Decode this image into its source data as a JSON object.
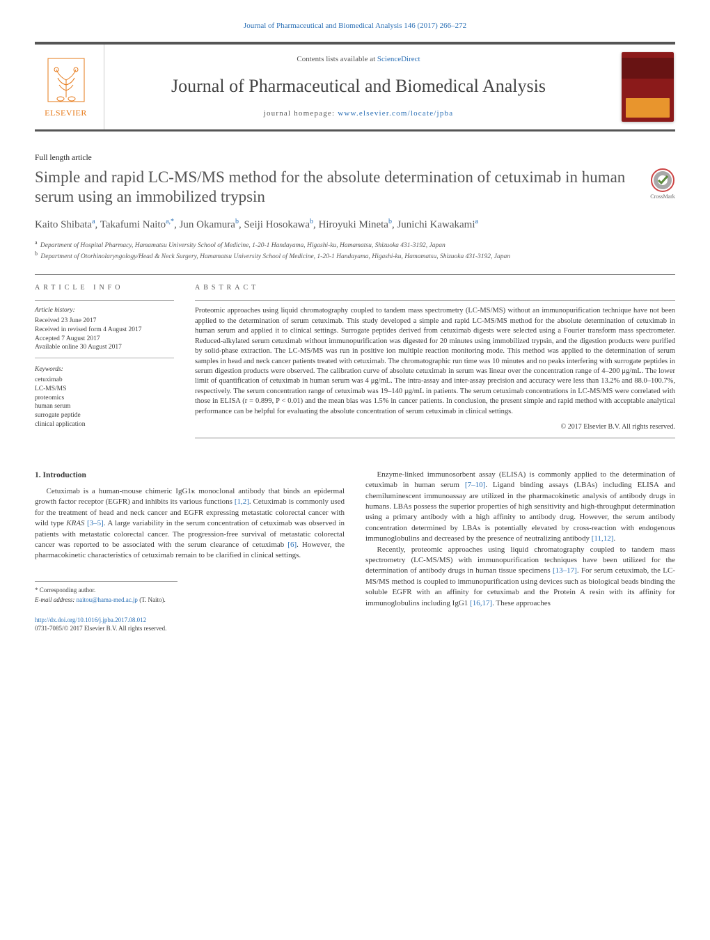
{
  "header": {
    "top_citation": "Journal of Pharmaceutical and Biomedical Analysis 146 (2017) 266–272",
    "contents_prefix": "Contents lists available at ",
    "contents_link": "ScienceDirect",
    "journal_name": "Journal of Pharmaceutical and Biomedical Analysis",
    "homepage_prefix": "journal homepage: ",
    "homepage_url": "www.elsevier.com/locate/jpba",
    "publisher_name": "ELSEVIER",
    "crossmark_label": "CrossMark"
  },
  "article": {
    "type": "Full length article",
    "title": "Simple and rapid LC-MS/MS method for the absolute determination of cetuximab in human serum using an immobilized trypsin",
    "authors_html": "Kaito Shibata<sup>a</sup>, Takafumi Naito<sup>a,*</sup>, Jun Okamura<sup>b</sup>, Seiji Hosokawa<sup>b</sup>, Hiroyuki Mineta<sup>b</sup>, Junichi Kawakami<sup>a</sup>",
    "authors": [
      {
        "name": "Kaito Shibata",
        "aff": "a"
      },
      {
        "name": "Takafumi Naito",
        "aff": "a,*"
      },
      {
        "name": "Jun Okamura",
        "aff": "b"
      },
      {
        "name": "Seiji Hosokawa",
        "aff": "b"
      },
      {
        "name": "Hiroyuki Mineta",
        "aff": "b"
      },
      {
        "name": "Junichi Kawakami",
        "aff": "a"
      }
    ],
    "affiliations": {
      "a": "Department of Hospital Pharmacy, Hamamatsu University School of Medicine, 1-20-1 Handayama, Higashi-ku, Hamamatsu, Shizuoka 431-3192, Japan",
      "b": "Department of Otorhinolaryngology/Head & Neck Surgery, Hamamatsu University School of Medicine, 1-20-1 Handayama, Higashi-ku, Hamamatsu, Shizuoka 431-3192, Japan"
    }
  },
  "info": {
    "heading": "article info",
    "history_label": "Article history:",
    "history": [
      "Received 23 June 2017",
      "Received in revised form 4 August 2017",
      "Accepted 7 August 2017",
      "Available online 30 August 2017"
    ],
    "keywords_label": "Keywords:",
    "keywords": [
      "cetuximab",
      "LC-MS/MS",
      "proteomics",
      "human serum",
      "surrogate peptide",
      "clinical application"
    ]
  },
  "abstract": {
    "heading": "abstract",
    "text": "Proteomic approaches using liquid chromatography coupled to tandem mass spectrometry (LC-MS/MS) without an immunopurification technique have not been applied to the determination of serum cetuximab. This study developed a simple and rapid LC-MS/MS method for the absolute determination of cetuximab in human serum and applied it to clinical settings. Surrogate peptides derived from cetuximab digests were selected using a Fourier transform mass spectrometer. Reduced-alkylated serum cetuximab without immunopurification was digested for 20 minutes using immobilized trypsin, and the digestion products were purified by solid-phase extraction. The LC-MS/MS was run in positive ion multiple reaction monitoring mode. This method was applied to the determination of serum samples in head and neck cancer patients treated with cetuximab. The chromatographic run time was 10 minutes and no peaks interfering with surrogate peptides in serum digestion products were observed. The calibration curve of absolute cetuximab in serum was linear over the concentration range of 4–200 μg/mL. The lower limit of quantification of cetuximab in human serum was 4 μg/mL. The intra-assay and inter-assay precision and accuracy were less than 13.2% and 88.0–100.7%, respectively. The serum concentration range of cetuximab was 19–140 μg/mL in patients. The serum cetuximab concentrations in LC-MS/MS were correlated with those in ELISA (r = 0.899, P < 0.01) and the mean bias was 1.5% in cancer patients. In conclusion, the present simple and rapid method with acceptable analytical performance can be helpful for evaluating the absolute concentration of serum cetuximab in clinical settings.",
    "copyright": "© 2017 Elsevier B.V. All rights reserved."
  },
  "body": {
    "section1_heading": "1. Introduction",
    "left_paras": [
      "Cetuximab is a human-mouse chimeric IgG1κ monoclonal antibody that binds an epidermal growth factor receptor (EGFR) and inhibits its various functions [1,2]. Cetuximab is commonly used for the treatment of head and neck cancer and EGFR expressing metastatic colorectal cancer with wild type KRAS [3–5]. A large variability in the serum concentration of cetuximab was observed in patients with metastatic colorectal cancer. The progression-free survival of metastatic colorectal cancer was reported to be associated with the serum clearance of cetuximab [6]. However, the pharmacokinetic characteristics of cetuximab remain to be clarified in clinical settings."
    ],
    "right_paras": [
      "Enzyme-linked immunosorbent assay (ELISA) is commonly applied to the determination of cetuximab in human serum [7–10]. Ligand binding assays (LBAs) including ELISA and chemiluminescent immunoassay are utilized in the pharmacokinetic analysis of antibody drugs in humans. LBAs possess the superior properties of high sensitivity and high-throughput determination using a primary antibody with a high affinity to antibody drug. However, the serum antibody concentration determined by LBAs is potentially elevated by cross-reaction with endogenous immunoglobulins and decreased by the presence of neutralizing antibody [11,12].",
      "Recently, proteomic approaches using liquid chromatography coupled to tandem mass spectrometry (LC-MS/MS) with immunopurification techniques have been utilized for the determination of antibody drugs in human tissue specimens [13–17]. For serum cetuximab, the LC-MS/MS method is coupled to immunopurification using devices such as biological beads binding the soluble EGFR with an affinity for cetuximab and the Protein A resin with its affinity for immunoglobulins including IgG1 [16,17]. These approaches"
    ],
    "refs_left": [
      "[1,2]",
      "[3–5]",
      "[6]"
    ],
    "refs_right": [
      "[7–10]",
      "[11,12]",
      "[13–17]",
      "[16,17]"
    ]
  },
  "footnotes": {
    "corresponding_label": "* Corresponding author.",
    "email_label": "E-mail address: ",
    "email": "naitou@hama-med.ac.jp",
    "email_name": " (T. Naito).",
    "doi_url": "http://dx.doi.org/10.1016/j.jpba.2017.08.012",
    "issn_line": "0731-7085/© 2017 Elsevier B.V. All rights reserved."
  },
  "colors": {
    "link": "#2a6fb5",
    "text": "#3a3a3a",
    "title_gray": "#555555",
    "publisher_orange": "#e67817",
    "cover_red": "#8b1a1a",
    "rule": "#888888"
  }
}
